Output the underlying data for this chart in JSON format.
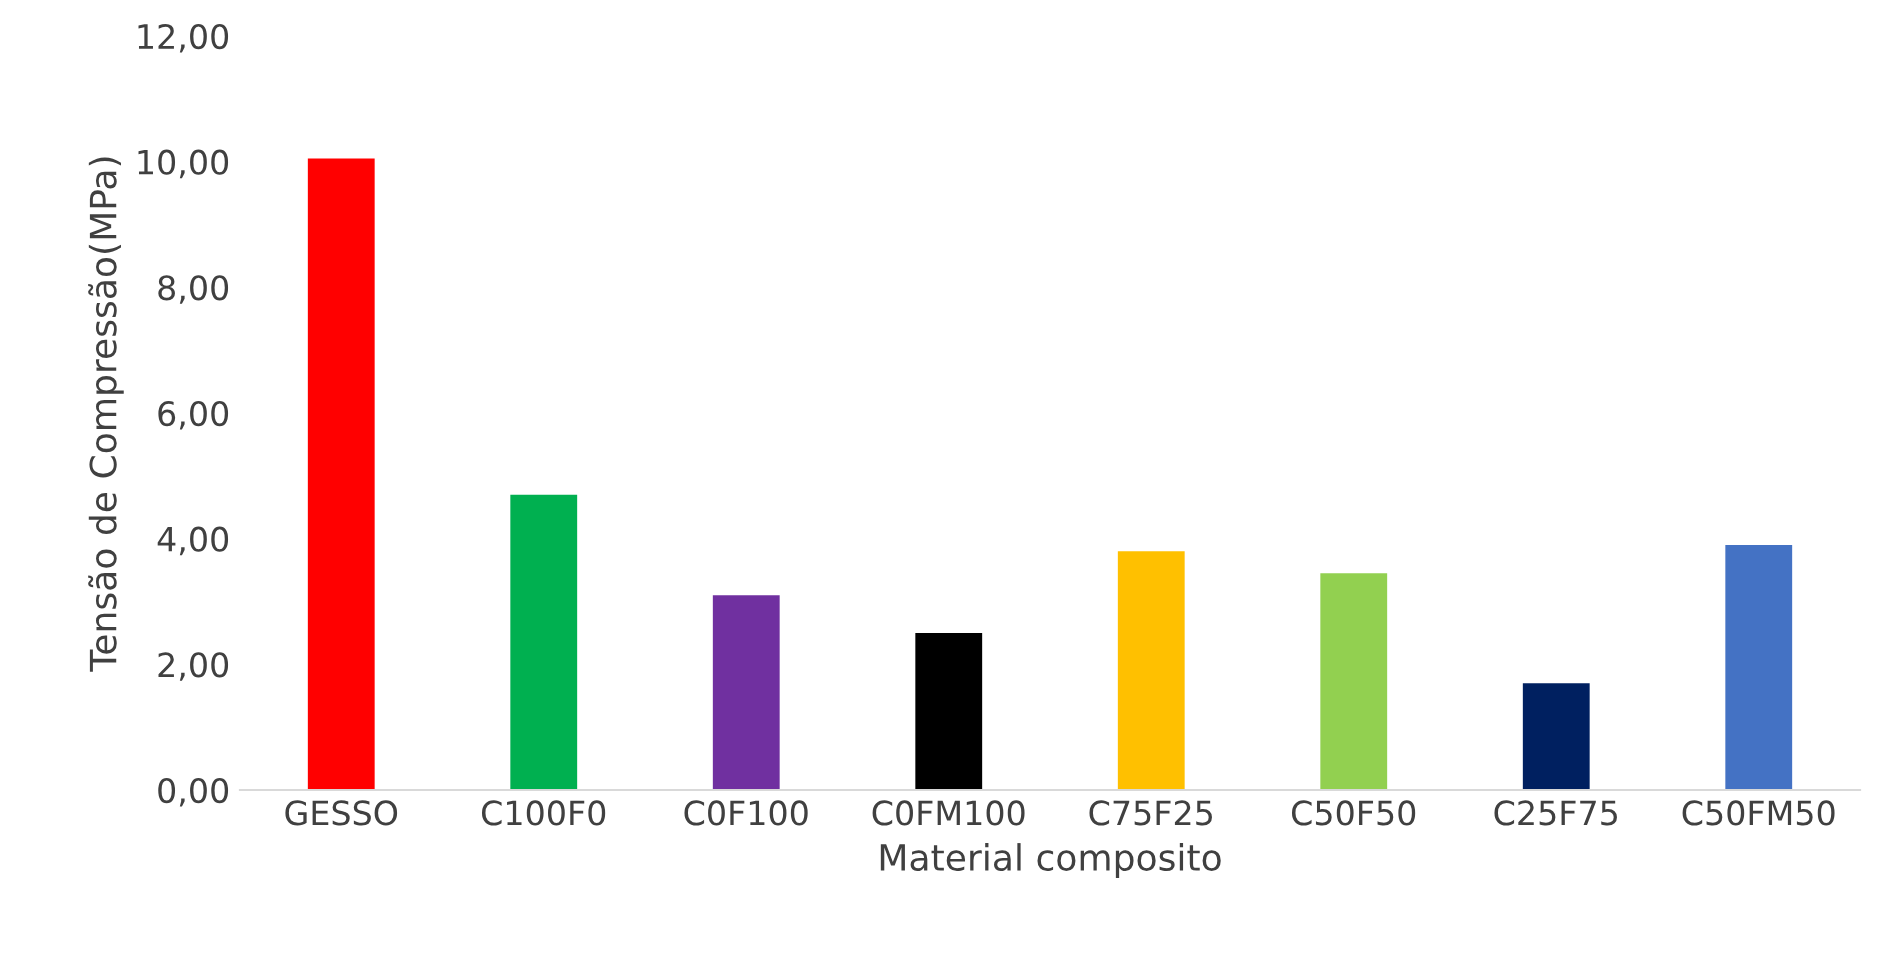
{
  "chart_data": {
    "type": "bar",
    "xlabel": "Material composito",
    "ylabel": "Tensão de Compressão(MPa)",
    "categories": [
      "GESSO",
      "C100F0",
      "C0F100",
      "C0FM100",
      "C75F25",
      "C50F50",
      "C25F75",
      "C50FM50"
    ],
    "values": [
      10.05,
      4.7,
      3.1,
      2.5,
      3.8,
      3.45,
      1.7,
      3.9
    ],
    "colors": [
      "#ff0000",
      "#00b050",
      "#7030a0",
      "#000000",
      "#ffc000",
      "#92d050",
      "#002060",
      "#4472c4"
    ],
    "ylim": [
      0,
      12
    ],
    "yticks": [
      {
        "value": 0,
        "label": "0,00"
      },
      {
        "value": 2,
        "label": "2,00"
      },
      {
        "value": 4,
        "label": "4,00"
      },
      {
        "value": 6,
        "label": "6,00"
      },
      {
        "value": 8,
        "label": "8,00"
      },
      {
        "value": 10,
        "label": "10,00"
      },
      {
        "value": 12,
        "label": "12,00"
      }
    ],
    "grid": false
  }
}
